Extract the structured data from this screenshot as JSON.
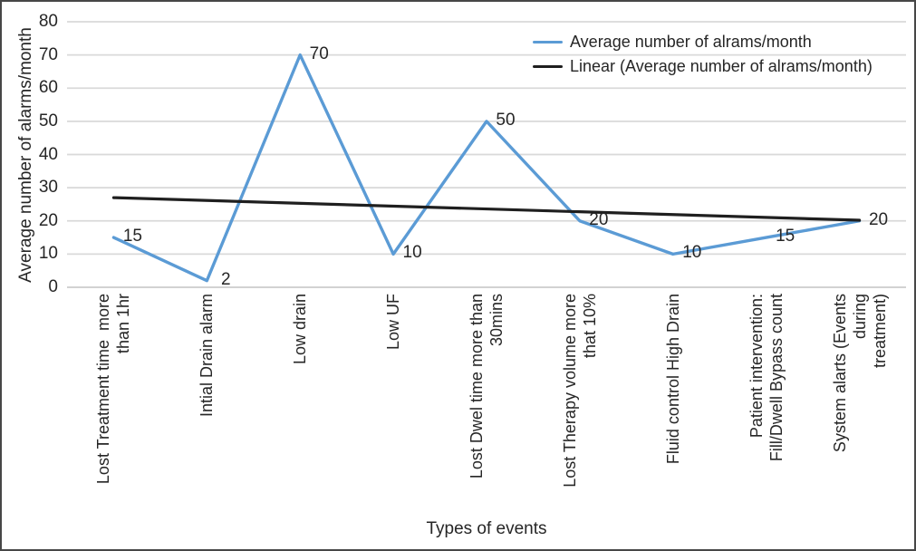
{
  "chart_data": {
    "type": "line",
    "title": "",
    "xlabel": "Types of events",
    "ylabel": "Average number of alarms/month",
    "ylim": [
      0,
      80
    ],
    "ytick_step": 10,
    "grid": true,
    "legend_position": "top-right",
    "categories": [
      "Lost Treatment time  more\nthan 1hr",
      "Intial Drain alarm",
      "Low drain",
      "Low UF",
      "Lost Dwel time more than\n30mins",
      "Lost Therapy volume more\nthat 10%",
      "Fluid control High Drain",
      "Patient intervention:\nFill/Dwell Bypass count",
      "System alarts (Events during\ntreatment)"
    ],
    "series": [
      {
        "name": "Average number of alrams/month",
        "type": "line",
        "color": "#5B9BD5",
        "values": [
          15,
          2,
          70,
          10,
          50,
          20,
          10,
          15,
          20
        ],
        "data_labels": [
          "15",
          "2",
          "70",
          "10",
          "50",
          "20",
          "10",
          "15",
          "20"
        ]
      },
      {
        "name": "Linear (Average number of alrams/month)",
        "type": "trendline",
        "color": "#1F1F1F",
        "start_value": 27,
        "end_value": 20.2
      }
    ],
    "colors": {
      "gridline": "#D9D9D9",
      "baseline": "#CCCCCC",
      "text": "#262626",
      "figure_border": "#474747"
    }
  }
}
